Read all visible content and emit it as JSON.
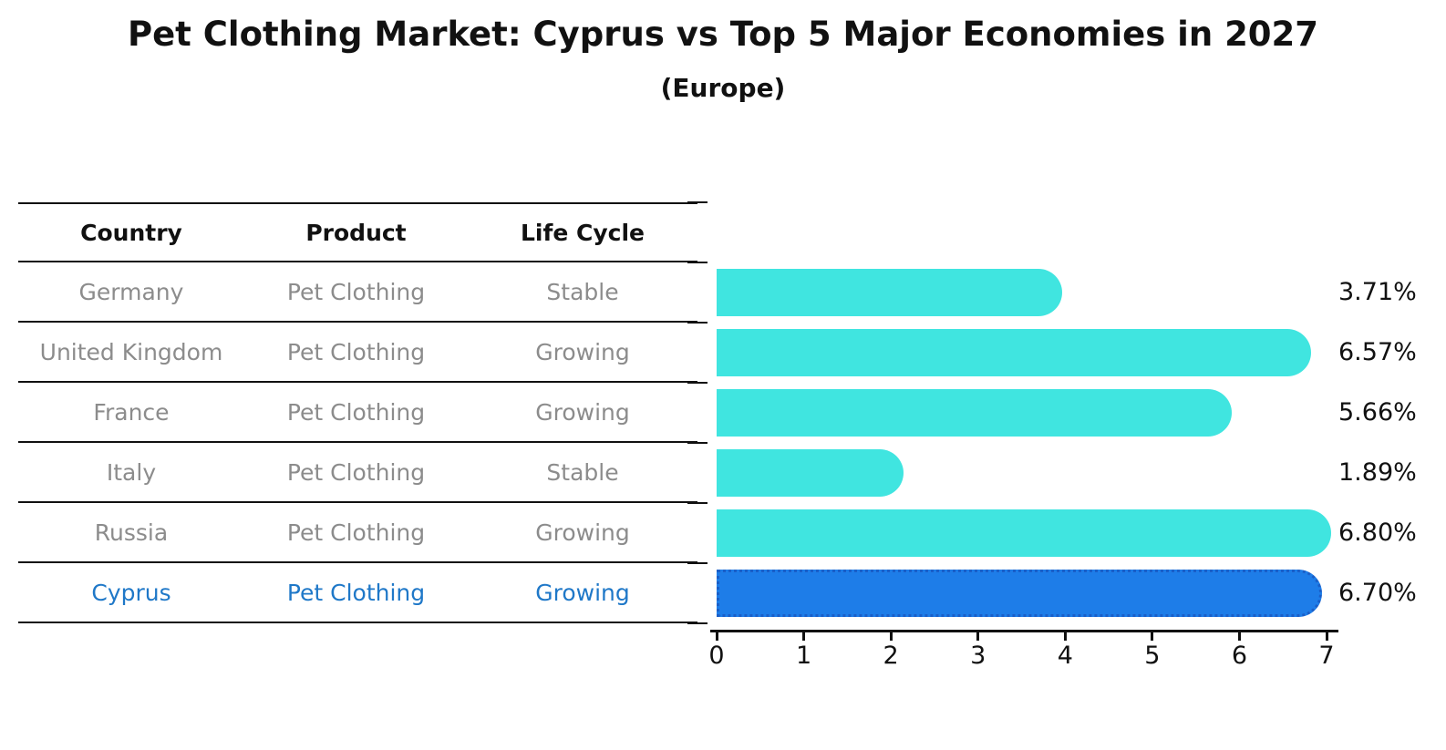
{
  "title": "Pet Clothing Market: Cyprus vs Top 5 Major Economies in 2027",
  "subtitle": "(Europe)",
  "table": {
    "headers": [
      "Country",
      "Product",
      "Life Cycle"
    ],
    "rows": [
      {
        "country": "Germany",
        "product": "Pet Clothing",
        "life_cycle": "Stable",
        "highlight": false
      },
      {
        "country": "United Kingdom",
        "product": "Pet Clothing",
        "life_cycle": "Growing",
        "highlight": false
      },
      {
        "country": "France",
        "product": "Pet Clothing",
        "life_cycle": "Growing",
        "highlight": false
      },
      {
        "country": "Italy",
        "product": "Pet Clothing",
        "life_cycle": "Stable",
        "highlight": false
      },
      {
        "country": "Russia",
        "product": "Pet Clothing",
        "life_cycle": "Growing",
        "highlight": false
      },
      {
        "country": "Cyprus",
        "product": "Pet Clothing",
        "life_cycle": "Growing",
        "highlight": true
      }
    ]
  },
  "chart_data": {
    "type": "bar",
    "orientation": "horizontal",
    "title": "Pet Clothing Market: Cyprus vs Top 5 Major Economies in 2027 (Europe)",
    "categories": [
      "Germany",
      "United Kingdom",
      "France",
      "Italy",
      "Russia",
      "Cyprus"
    ],
    "values": [
      3.71,
      6.57,
      5.66,
      1.89,
      6.8,
      6.7
    ],
    "value_labels": [
      "3.71%",
      "6.57%",
      "5.66%",
      "1.89%",
      "6.80%",
      "6.70%"
    ],
    "xlabel": "",
    "ylabel": "",
    "xlim": [
      0,
      7
    ],
    "x_ticks": [
      "0",
      "1",
      "2",
      "3",
      "4",
      "5",
      "6",
      "7"
    ],
    "grid": false,
    "legend": false,
    "bar_color": "#40E5E0",
    "highlight_bar_color": "#1E7DE8",
    "highlight_index": 5
  },
  "colors": {
    "bar_cyan": "#40E5E0",
    "bar_blue": "#1E7DE8",
    "highlight_border_blue": "#1A5FC8",
    "row_text_gray": "#8c8c8c",
    "highlight_text_blue": "#1F78C8",
    "line_black": "#111111",
    "label_black": "#111111"
  }
}
